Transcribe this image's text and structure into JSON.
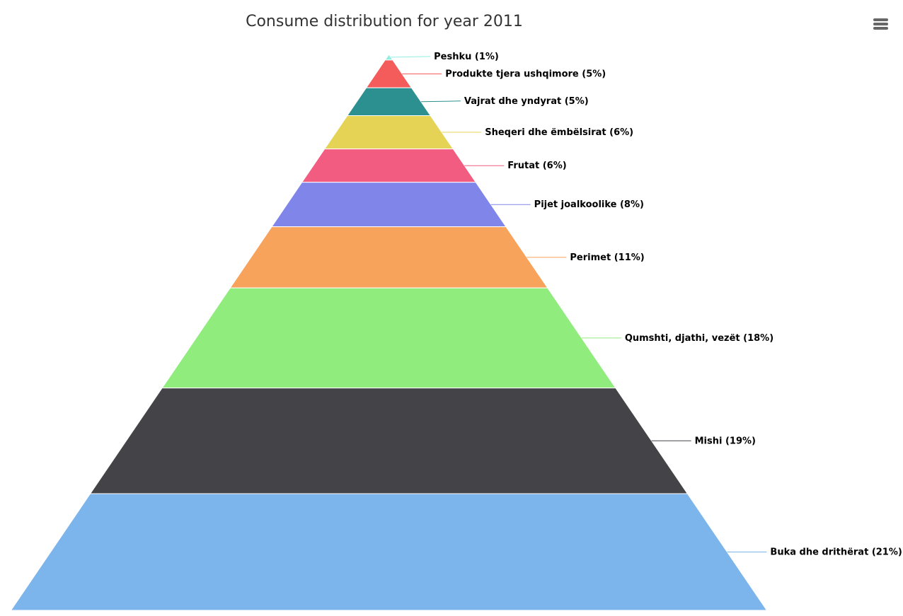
{
  "chart_data": {
    "type": "pyramid",
    "title": "Consume distribution for year 2011",
    "series": [
      {
        "values": [
          {
            "name": "Peshku",
            "label": "Peshku (1%)",
            "value": 1,
            "color": "#90ede0"
          },
          {
            "name": "Produkte tjera ushqimore",
            "label": "Produkte tjera ushqimore (5%)",
            "value": 5,
            "color": "#f45b5b"
          },
          {
            "name": "Vajrat dhe yndyrat",
            "label": "Vajrat dhe yndyrat (5%)",
            "value": 5,
            "color": "#2b908f"
          },
          {
            "name": "Sheqeri dhe ëmbëlsirat",
            "label": "Sheqeri dhe ëmbëlsirat (6%)",
            "value": 6,
            "color": "#e4d354"
          },
          {
            "name": "Frutat",
            "label": "Frutat (6%)",
            "value": 6,
            "color": "#f15c80"
          },
          {
            "name": "Pijet joalkoolike",
            "label": "Pijet joalkoolike (8%)",
            "value": 8,
            "color": "#8085e9"
          },
          {
            "name": "Perimet",
            "label": "Perimet (11%)",
            "value": 11,
            "color": "#f7a35c"
          },
          {
            "name": "Qumshti, djathi, vezët",
            "label": "Qumshti, djathi, vezët (18%)",
            "value": 18,
            "color": "#90ed7d"
          },
          {
            "name": "Mishi",
            "label": "Mishi (19%)",
            "value": 19,
            "color": "#434348"
          },
          {
            "name": "Buka dhe drithërat",
            "label": "Buka dhe drithërat (21%)",
            "value": 21,
            "color": "#7cb5ec"
          }
        ]
      }
    ],
    "legend": "none",
    "data_labels": "right-with-connectors"
  },
  "menu": {
    "icon": "hamburger-menu-icon",
    "color": "#666666"
  }
}
